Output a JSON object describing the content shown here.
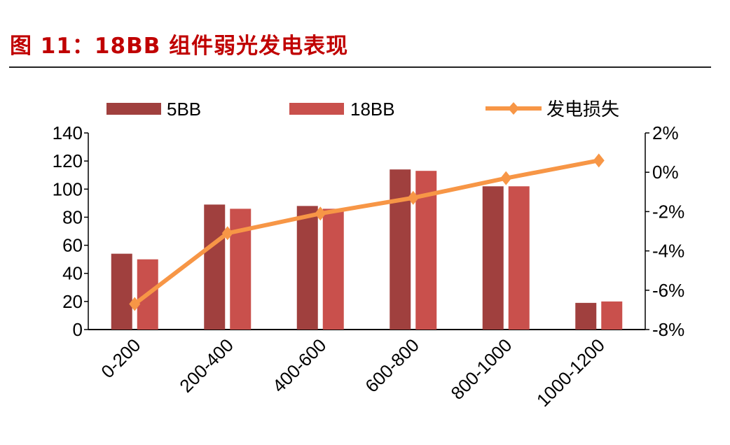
{
  "title": "图 11：18BB 组件弱光发电表现",
  "colors": {
    "title": "#c00000",
    "5BB": "#a0403e",
    "18BB": "#c9504c",
    "loss": "#f79646"
  },
  "chart_data": {
    "type": "bar+line",
    "categories": [
      "0-200",
      "200-400",
      "400-600",
      "600-800",
      "800-1000",
      "1000-1200"
    ],
    "series": [
      {
        "name": "5BB",
        "type": "bar",
        "axis": "left",
        "values": [
          54,
          89,
          88,
          114,
          102,
          19
        ]
      },
      {
        "name": "18BB",
        "type": "bar",
        "axis": "left",
        "values": [
          50,
          86,
          86,
          113,
          102,
          20
        ]
      },
      {
        "name": "发电损失",
        "type": "line",
        "axis": "right",
        "unit": "%",
        "values": [
          -6.7,
          -3.1,
          -2.1,
          -1.3,
          -0.3,
          0.6
        ]
      }
    ],
    "ylim_left": [
      0,
      140
    ],
    "yticks_left": [
      "0",
      "20",
      "40",
      "60",
      "80",
      "100",
      "120",
      "140"
    ],
    "ylim_right": [
      -8,
      2
    ],
    "yticks_right": [
      "-8%",
      "-6%",
      "-4%",
      "-2%",
      "0%",
      "2%"
    ],
    "grid": false,
    "legend": "top"
  }
}
